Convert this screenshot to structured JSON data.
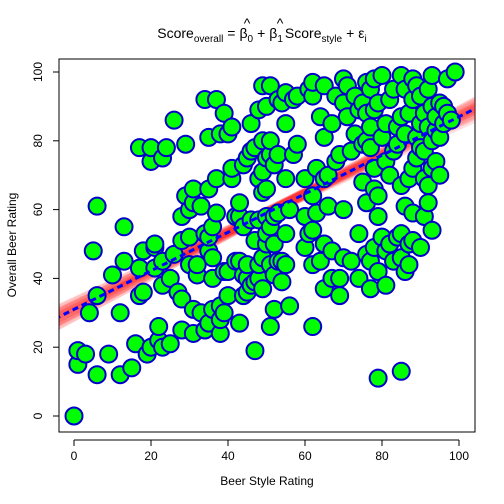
{
  "chart_data": {
    "type": "scatter",
    "title": {
      "lhs": "Score",
      "lhs_sub": "overall",
      "equals": "=",
      "beta0": "β",
      "beta0_sub": "0",
      "plus1": "+",
      "beta1": "β",
      "beta1_sub": "1",
      "rhs": "Score",
      "rhs_sub": "style",
      "plus2": "+",
      "eps": "ε",
      "eps_sub": "i"
    },
    "xlabel": "Beer Style Rating",
    "ylabel": "Overall Beer Rating",
    "xlim": [
      0,
      100
    ],
    "ylim": [
      0,
      100
    ],
    "x_ticks": [
      "0",
      "20",
      "40",
      "60",
      "80",
      "100"
    ],
    "y_ticks": [
      "0",
      "20",
      "40",
      "60",
      "80",
      "100"
    ],
    "regression": {
      "intercept": 31,
      "slope": 0.56,
      "line_color": "#0000ff",
      "band_color": "#ff0000"
    },
    "point_fill": "#00ff00",
    "point_stroke": "#0000cc",
    "points": [
      [
        0,
        0
      ],
      [
        1,
        15
      ],
      [
        1,
        19
      ],
      [
        3,
        18
      ],
      [
        4,
        30
      ],
      [
        5,
        48
      ],
      [
        6,
        12
      ],
      [
        6,
        35
      ],
      [
        6,
        61
      ],
      [
        9,
        18
      ],
      [
        10,
        41
      ],
      [
        12,
        12
      ],
      [
        12,
        30
      ],
      [
        13,
        45
      ],
      [
        13,
        55
      ],
      [
        15,
        14
      ],
      [
        16,
        21
      ],
      [
        17,
        35
      ],
      [
        17,
        43
      ],
      [
        17,
        78
      ],
      [
        18,
        36
      ],
      [
        18,
        48
      ],
      [
        19,
        18
      ],
      [
        20,
        20
      ],
      [
        20,
        74
      ],
      [
        20,
        78
      ],
      [
        21,
        43
      ],
      [
        21,
        49
      ],
      [
        21,
        50
      ],
      [
        22,
        22
      ],
      [
        22,
        26
      ],
      [
        23,
        20
      ],
      [
        23,
        38
      ],
      [
        23,
        45
      ],
      [
        23,
        75
      ],
      [
        24,
        78
      ],
      [
        25,
        21
      ],
      [
        25,
        40
      ],
      [
        26,
        47
      ],
      [
        26,
        86
      ],
      [
        27,
        36
      ],
      [
        28,
        25
      ],
      [
        28,
        34
      ],
      [
        28,
        51
      ],
      [
        28,
        58
      ],
      [
        29,
        64
      ],
      [
        29,
        79
      ],
      [
        30,
        44
      ],
      [
        30,
        52
      ],
      [
        30,
        60
      ],
      [
        31,
        24
      ],
      [
        31,
        31
      ],
      [
        31,
        62
      ],
      [
        31,
        66
      ],
      [
        32,
        41
      ],
      [
        32,
        44
      ],
      [
        33,
        30
      ],
      [
        33,
        61
      ],
      [
        34,
        25
      ],
      [
        34,
        53
      ],
      [
        34,
        92
      ],
      [
        35,
        27
      ],
      [
        35,
        48
      ],
      [
        35,
        52
      ],
      [
        35,
        66
      ],
      [
        35,
        81
      ],
      [
        36,
        31
      ],
      [
        36,
        40
      ],
      [
        36,
        46
      ],
      [
        36,
        55
      ],
      [
        37,
        59
      ],
      [
        37,
        69
      ],
      [
        37,
        92
      ],
      [
        38,
        24
      ],
      [
        38,
        28
      ],
      [
        38,
        32
      ],
      [
        38,
        82
      ],
      [
        39,
        30
      ],
      [
        39,
        42
      ],
      [
        39,
        88
      ],
      [
        40,
        35
      ],
      [
        40,
        42
      ],
      [
        40,
        82
      ],
      [
        41,
        69
      ],
      [
        41,
        72
      ],
      [
        41,
        84
      ],
      [
        42,
        45
      ],
      [
        42,
        58
      ],
      [
        43,
        27
      ],
      [
        43,
        45
      ],
      [
        43,
        58
      ],
      [
        43,
        62
      ],
      [
        44,
        35
      ],
      [
        44,
        41
      ],
      [
        44,
        55
      ],
      [
        44,
        73
      ],
      [
        45,
        36
      ],
      [
        45,
        40
      ],
      [
        45,
        44
      ],
      [
        45,
        75
      ],
      [
        46,
        38
      ],
      [
        46,
        57
      ],
      [
        46,
        77
      ],
      [
        46,
        85
      ],
      [
        47,
        19
      ],
      [
        47,
        39
      ],
      [
        47,
        51
      ],
      [
        47,
        78
      ],
      [
        48,
        40
      ],
      [
        48,
        44
      ],
      [
        48,
        57
      ],
      [
        48,
        69
      ],
      [
        48,
        89
      ],
      [
        49,
        37
      ],
      [
        49,
        46
      ],
      [
        49,
        65
      ],
      [
        49,
        71
      ],
      [
        49,
        80
      ],
      [
        49,
        96
      ],
      [
        50,
        50
      ],
      [
        50,
        53
      ],
      [
        50,
        58
      ],
      [
        50,
        66
      ],
      [
        50,
        75
      ],
      [
        50,
        90
      ],
      [
        51,
        26
      ],
      [
        51,
        44
      ],
      [
        51,
        55
      ],
      [
        51,
        76
      ],
      [
        51,
        80
      ],
      [
        51,
        96
      ],
      [
        52,
        31
      ],
      [
        52,
        41
      ],
      [
        52,
        50
      ],
      [
        52,
        58
      ],
      [
        52,
        73
      ],
      [
        53,
        45
      ],
      [
        53,
        59
      ],
      [
        53,
        76
      ],
      [
        53,
        92
      ],
      [
        54,
        39
      ],
      [
        54,
        45
      ],
      [
        54,
        91
      ],
      [
        55,
        44
      ],
      [
        55,
        53
      ],
      [
        55,
        69
      ],
      [
        55,
        85
      ],
      [
        55,
        94
      ],
      [
        56,
        32
      ],
      [
        56,
        60
      ],
      [
        57,
        76
      ],
      [
        57,
        92
      ],
      [
        58,
        79
      ],
      [
        58,
        93
      ],
      [
        60,
        49
      ],
      [
        60,
        58
      ],
      [
        60,
        69
      ],
      [
        61,
        53
      ],
      [
        61,
        95
      ],
      [
        62,
        26
      ],
      [
        62,
        44
      ],
      [
        62,
        54
      ],
      [
        62,
        64
      ],
      [
        62,
        93
      ],
      [
        62,
        97
      ],
      [
        63,
        59
      ],
      [
        63,
        72
      ],
      [
        64,
        45
      ],
      [
        64,
        87
      ],
      [
        65,
        37
      ],
      [
        65,
        50
      ],
      [
        65,
        69
      ],
      [
        65,
        81
      ],
      [
        65,
        96
      ],
      [
        66,
        61
      ],
      [
        66,
        70
      ],
      [
        67,
        40
      ],
      [
        67,
        48
      ],
      [
        67,
        85
      ],
      [
        68,
        74
      ],
      [
        68,
        93
      ],
      [
        69,
        35
      ],
      [
        69,
        40
      ],
      [
        69,
        76
      ],
      [
        70,
        46
      ],
      [
        70,
        60
      ],
      [
        70,
        91
      ],
      [
        70,
        98
      ],
      [
        71,
        87
      ],
      [
        71,
        96
      ],
      [
        72,
        45
      ],
      [
        72,
        77
      ],
      [
        73,
        82
      ],
      [
        73,
        93
      ],
      [
        74,
        40
      ],
      [
        74,
        53
      ],
      [
        74,
        89
      ],
      [
        75,
        68
      ],
      [
        75,
        79
      ],
      [
        75,
        91
      ],
      [
        76,
        47
      ],
      [
        76,
        62
      ],
      [
        76,
        80
      ],
      [
        76,
        88
      ],
      [
        76,
        97
      ],
      [
        77,
        37
      ],
      [
        77,
        45
      ],
      [
        77,
        78
      ],
      [
        77,
        84
      ],
      [
        77,
        95
      ],
      [
        78,
        49
      ],
      [
        78,
        66
      ],
      [
        78,
        72
      ],
      [
        78,
        89
      ],
      [
        78,
        98
      ],
      [
        79,
        11
      ],
      [
        79,
        42
      ],
      [
        79,
        58
      ],
      [
        79,
        64
      ],
      [
        79,
        91
      ],
      [
        80,
        52
      ],
      [
        80,
        81
      ],
      [
        80,
        99
      ],
      [
        81,
        38
      ],
      [
        81,
        48
      ],
      [
        81,
        74
      ],
      [
        81,
        85
      ],
      [
        82,
        50
      ],
      [
        82,
        70
      ],
      [
        82,
        92
      ],
      [
        83,
        45
      ],
      [
        83,
        77
      ],
      [
        83,
        95
      ],
      [
        84,
        52
      ],
      [
        84,
        79
      ],
      [
        84,
        84
      ],
      [
        85,
        13
      ],
      [
        85,
        46
      ],
      [
        85,
        53
      ],
      [
        85,
        67
      ],
      [
        85,
        87
      ],
      [
        85,
        99
      ],
      [
        86,
        42
      ],
      [
        86,
        61
      ],
      [
        86,
        82
      ],
      [
        86,
        95
      ],
      [
        87,
        44
      ],
      [
        87,
        50
      ],
      [
        87,
        69
      ],
      [
        87,
        88
      ],
      [
        88,
        51
      ],
      [
        88,
        59
      ],
      [
        88,
        72
      ],
      [
        88,
        92
      ],
      [
        88,
        98
      ],
      [
        89,
        75
      ],
      [
        89,
        81
      ],
      [
        89,
        96
      ],
      [
        90,
        49
      ],
      [
        90,
        78
      ],
      [
        90,
        85
      ],
      [
        90,
        93
      ],
      [
        91,
        58
      ],
      [
        91,
        69
      ],
      [
        91,
        77
      ],
      [
        91,
        88
      ],
      [
        92,
        62
      ],
      [
        92,
        67
      ],
      [
        92,
        84
      ],
      [
        92,
        95
      ],
      [
        93,
        54
      ],
      [
        93,
        72
      ],
      [
        93,
        80
      ],
      [
        93,
        90
      ],
      [
        93,
        99
      ],
      [
        94,
        74
      ],
      [
        94,
        83
      ],
      [
        94,
        87
      ],
      [
        95,
        70
      ],
      [
        95,
        81
      ],
      [
        95,
        91
      ],
      [
        96,
        85
      ],
      [
        96,
        90
      ],
      [
        97,
        88
      ],
      [
        97,
        98
      ],
      [
        98,
        86
      ],
      [
        99,
        100
      ]
    ]
  }
}
